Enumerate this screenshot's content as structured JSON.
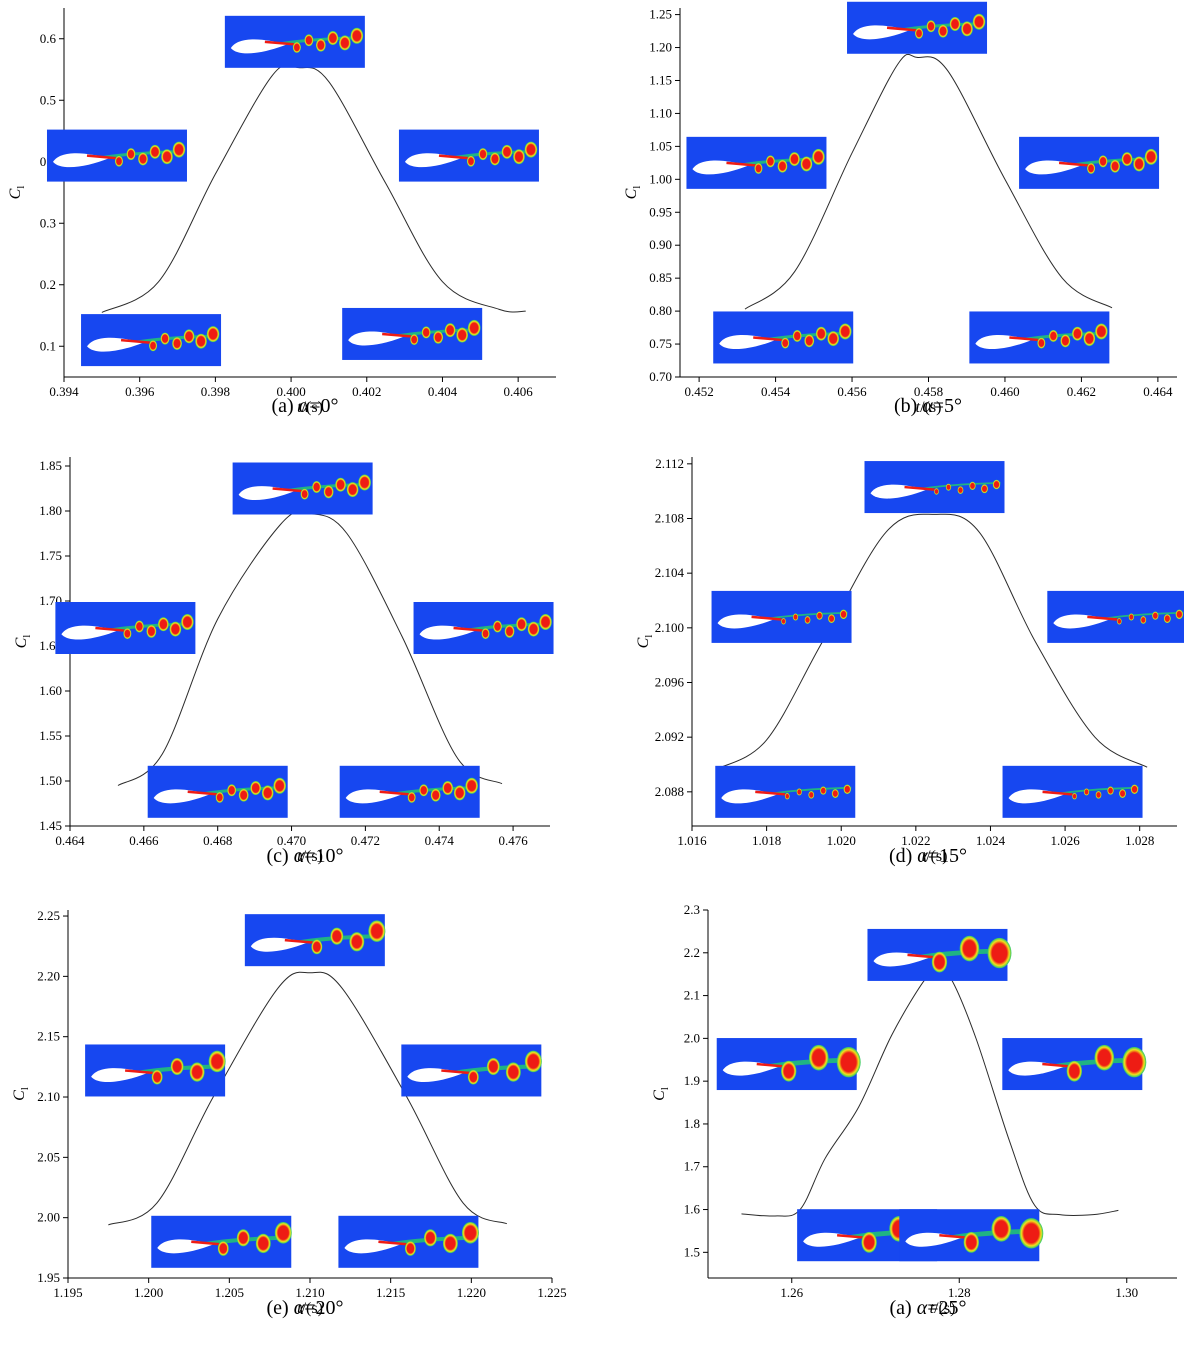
{
  "figure": {
    "colors": {
      "flow_bg": "#1747f0",
      "vortex": "#ee1c14",
      "shear": "#22c870",
      "airfoil": "#ffffff",
      "curve": "#2b2b2b"
    }
  },
  "chart_data": [
    {
      "id": "a",
      "type": "line",
      "caption": {
        "prefix": "(a) ",
        "symbol": "α",
        "suffix": "=0°"
      },
      "xlabel": "t/(s)",
      "ylabel": "C_l",
      "xlim": [
        0.394,
        0.407
      ],
      "ylim": [
        0.05,
        0.65
      ],
      "xticks": [
        "0.394",
        "0.396",
        "0.398",
        "0.400",
        "0.402",
        "0.404",
        "0.406"
      ],
      "yticks": [
        "0.1",
        "0.2",
        "0.3",
        "0.4",
        "0.5",
        "0.6"
      ],
      "series": [
        {
          "x": [
            0.395,
            0.3965,
            0.398,
            0.3995,
            0.4002,
            0.401,
            0.4025,
            0.404,
            0.4055,
            0.4062
          ],
          "values": [
            0.155,
            0.205,
            0.38,
            0.54,
            0.553,
            0.53,
            0.365,
            0.205,
            0.16,
            0.157
          ]
        }
      ],
      "insets": [
        {
          "x": 0.4001,
          "y": 0.595,
          "label": "vortex-snapshot-top",
          "vortex_scale": 1
        },
        {
          "x": 0.3954,
          "y": 0.41,
          "label": "vortex-snapshot-left",
          "vortex_scale": 1
        },
        {
          "x": 0.4047,
          "y": 0.41,
          "label": "vortex-snapshot-right",
          "vortex_scale": 1
        },
        {
          "x": 0.3963,
          "y": 0.11,
          "label": "vortex-snapshot-bottom-left",
          "vortex_scale": 1
        },
        {
          "x": 0.4032,
          "y": 0.12,
          "label": "vortex-snapshot-bottom-right",
          "vortex_scale": 1
        }
      ]
    },
    {
      "id": "b",
      "type": "line",
      "caption": {
        "prefix": "(b) ",
        "symbol": "α",
        "suffix": "=5°"
      },
      "xlabel": "t/(s)",
      "ylabel": "C_l",
      "xlim": [
        0.4515,
        0.4645
      ],
      "ylim": [
        0.7,
        1.26
      ],
      "xticks": [
        "0.452",
        "0.454",
        "0.456",
        "0.458",
        "0.460",
        "0.462",
        "0.464"
      ],
      "yticks": [
        "0.70",
        "0.75",
        "0.80",
        "0.85",
        "0.90",
        "0.95",
        "1.00",
        "1.05",
        "1.10",
        "1.15",
        "1.20",
        "1.25"
      ],
      "series": [
        {
          "x": [
            0.4532,
            0.4545,
            0.456,
            0.4572,
            0.4577,
            0.4585,
            0.46,
            0.4615,
            0.4628
          ],
          "values": [
            0.803,
            0.86,
            1.04,
            1.175,
            1.185,
            1.165,
            1.0,
            0.85,
            0.805
          ]
        }
      ],
      "insets": [
        {
          "x": 0.4577,
          "y": 1.23,
          "label": "vortex-snapshot-top",
          "vortex_scale": 1
        },
        {
          "x": 0.4535,
          "y": 1.025,
          "label": "vortex-snapshot-left",
          "vortex_scale": 1
        },
        {
          "x": 0.4622,
          "y": 1.025,
          "label": "vortex-snapshot-right",
          "vortex_scale": 1
        },
        {
          "x": 0.4542,
          "y": 0.76,
          "label": "vortex-snapshot-bottom-left",
          "vortex_scale": 1
        },
        {
          "x": 0.4609,
          "y": 0.76,
          "label": "vortex-snapshot-bottom-right",
          "vortex_scale": 1
        }
      ]
    },
    {
      "id": "c",
      "type": "line",
      "caption": {
        "prefix": "(c) ",
        "symbol": "α",
        "suffix": "=10°"
      },
      "xlabel": "t/(s)",
      "ylabel": "C_l",
      "xlim": [
        0.464,
        0.477
      ],
      "ylim": [
        1.45,
        1.86
      ],
      "xticks": [
        "0.464",
        "0.466",
        "0.468",
        "0.470",
        "0.472",
        "0.474",
        "0.476"
      ],
      "yticks": [
        "1.45",
        "1.50",
        "1.55",
        "1.60",
        "1.65",
        "1.70",
        "1.75",
        "1.80",
        "1.85"
      ],
      "series": [
        {
          "x": [
            0.4653,
            0.4665,
            0.468,
            0.4697,
            0.4705,
            0.4715,
            0.473,
            0.4745,
            0.4757
          ],
          "values": [
            1.495,
            1.53,
            1.68,
            1.785,
            1.797,
            1.775,
            1.66,
            1.525,
            1.497
          ]
        }
      ],
      "insets": [
        {
          "x": 0.4703,
          "y": 1.825,
          "label": "vortex-snapshot-top",
          "vortex_scale": 1
        },
        {
          "x": 0.4655,
          "y": 1.67,
          "label": "vortex-snapshot-left",
          "vortex_scale": 1
        },
        {
          "x": 0.4752,
          "y": 1.67,
          "label": "vortex-snapshot-right",
          "vortex_scale": 1
        },
        {
          "x": 0.468,
          "y": 1.488,
          "label": "vortex-snapshot-bottom-left",
          "vortex_scale": 1
        },
        {
          "x": 0.4732,
          "y": 1.488,
          "label": "vortex-snapshot-bottom-right",
          "vortex_scale": 1
        }
      ]
    },
    {
      "id": "d",
      "type": "line",
      "caption": {
        "prefix": "(d) ",
        "symbol": "α",
        "suffix": "=15°"
      },
      "xlabel": "t/(s)",
      "ylabel": "C_l",
      "xlim": [
        1.016,
        1.029
      ],
      "ylim": [
        2.0855,
        2.1125
      ],
      "xticks": [
        "1.016",
        "1.018",
        "1.020",
        "1.022",
        "1.024",
        "1.026",
        "1.028"
      ],
      "yticks": [
        "2.088",
        "2.092",
        "2.096",
        "2.100",
        "2.104",
        "2.108",
        "2.112"
      ],
      "series": [
        {
          "x": [
            1.0167,
            1.018,
            1.0195,
            1.0212,
            1.0225,
            1.0237,
            1.0252,
            1.0268,
            1.0282
          ],
          "values": [
            2.0897,
            2.0918,
            2.099,
            2.107,
            2.1083,
            2.107,
            2.099,
            2.092,
            2.0898
          ]
        }
      ],
      "insets": [
        {
          "x": 1.0225,
          "y": 2.1103,
          "label": "vortex-snapshot-top",
          "vortex_scale": 0.6
        },
        {
          "x": 1.0184,
          "y": 2.1008,
          "label": "vortex-snapshot-left",
          "vortex_scale": 0.6
        },
        {
          "x": 1.0274,
          "y": 2.1008,
          "label": "vortex-snapshot-right",
          "vortex_scale": 0.6
        },
        {
          "x": 1.0185,
          "y": 2.088,
          "label": "vortex-snapshot-bottom-left",
          "vortex_scale": 0.6
        },
        {
          "x": 1.0262,
          "y": 2.088,
          "label": "vortex-snapshot-bottom-right",
          "vortex_scale": 0.6
        }
      ]
    },
    {
      "id": "e",
      "type": "line",
      "caption": {
        "prefix": "(e) ",
        "symbol": "α",
        "suffix": "=20°"
      },
      "xlabel": "t/(s)",
      "ylabel": "C_l",
      "xlim": [
        1.195,
        1.225
      ],
      "ylim": [
        1.95,
        2.255
      ],
      "xticks": [
        "1.195",
        "1.200",
        "1.205",
        "1.210",
        "1.215",
        "1.220",
        "1.225"
      ],
      "yticks": [
        "1.95",
        "2.00",
        "2.05",
        "2.10",
        "2.15",
        "2.20",
        "2.25"
      ],
      "series": [
        {
          "x": [
            1.1975,
            1.2005,
            1.204,
            1.208,
            1.21,
            1.212,
            1.216,
            1.2195,
            1.2222
          ],
          "values": [
            1.994,
            2.012,
            2.1,
            2.19,
            2.203,
            2.19,
            2.1,
            2.012,
            1.995
          ]
        }
      ],
      "insets": [
        {
          "x": 1.2103,
          "y": 2.23,
          "label": "vortex-snapshot-top",
          "vortex_scale": 1.35
        },
        {
          "x": 1.2004,
          "y": 2.122,
          "label": "vortex-snapshot-left",
          "vortex_scale": 1.35
        },
        {
          "x": 1.22,
          "y": 2.122,
          "label": "vortex-snapshot-right",
          "vortex_scale": 1.35
        },
        {
          "x": 1.2045,
          "y": 1.98,
          "label": "vortex-snapshot-bottom-left",
          "vortex_scale": 1.35
        },
        {
          "x": 1.2161,
          "y": 1.98,
          "label": "vortex-snapshot-bottom-right",
          "vortex_scale": 1.35
        }
      ]
    },
    {
      "id": "f",
      "type": "line",
      "caption": {
        "prefix": "(a) ",
        "symbol": "α",
        "suffix": "=25°"
      },
      "xlabel": "t/(s)",
      "ylabel": "C_l",
      "xlim": [
        1.25,
        1.306
      ],
      "ylim": [
        1.44,
        2.3
      ],
      "xticks": [
        "1.26",
        "1.28",
        "1.30"
      ],
      "xtick_values": [
        1.26,
        1.28,
        1.3
      ],
      "yticks": [
        "1.5",
        "1.6",
        "1.7",
        "1.8",
        "1.9",
        "2.0",
        "2.1",
        "2.2",
        "2.3"
      ],
      "series": [
        {
          "x": [
            1.254,
            1.258,
            1.261,
            1.264,
            1.268,
            1.272,
            1.276,
            1.2775,
            1.279,
            1.282,
            1.286,
            1.289,
            1.292,
            1.296,
            1.299
          ],
          "values": [
            1.59,
            1.585,
            1.6,
            1.72,
            1.84,
            2.01,
            2.14,
            2.152,
            2.14,
            2.0,
            1.76,
            1.61,
            1.588,
            1.588,
            1.598
          ]
        }
      ],
      "insets": [
        {
          "x": 1.2774,
          "y": 2.195,
          "label": "vortex-snapshot-top",
          "vortex_scale": 1.9
        },
        {
          "x": 1.2594,
          "y": 1.94,
          "label": "vortex-snapshot-left",
          "vortex_scale": 1.9
        },
        {
          "x": 1.2935,
          "y": 1.94,
          "label": "vortex-snapshot-right",
          "vortex_scale": 1.9
        },
        {
          "x": 1.269,
          "y": 1.54,
          "label": "vortex-snapshot-bottom-left",
          "vortex_scale": 1.9
        },
        {
          "x": 1.2812,
          "y": 1.54,
          "label": "vortex-snapshot-bottom-right",
          "vortex_scale": 1.9
        }
      ]
    }
  ]
}
